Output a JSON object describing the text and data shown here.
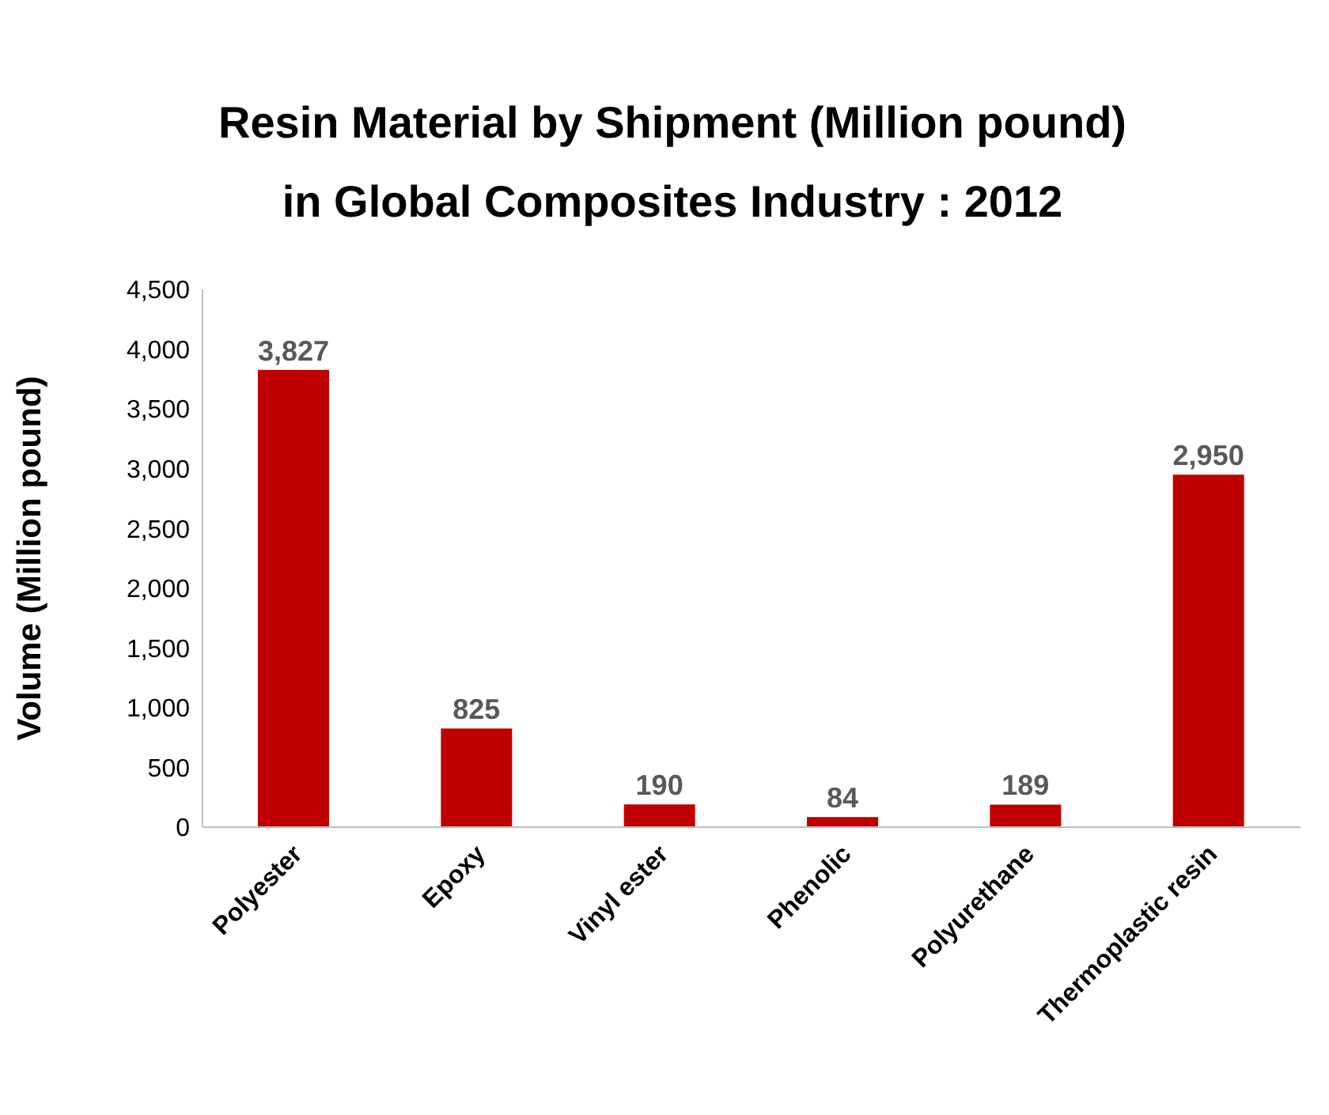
{
  "chart_data": {
    "type": "bar",
    "title": "Resin Material by Shipment (Million pound)\nin Global Composites Industry : 2012",
    "ylabel": "Volume (Million pound)",
    "categories": [
      "Polyester",
      "Epoxy",
      "Vinyl ester",
      "Phenolic",
      "Polyurethane",
      "Thermoplastic resin"
    ],
    "values": [
      3827,
      825,
      190,
      84,
      189,
      2950
    ],
    "color": "#c00000",
    "ylim": [
      0,
      4500
    ],
    "yticks": [
      0,
      500,
      {
        "value": 1000,
        "label": "1,000"
      },
      {
        "value": 1500,
        "label": "1,500"
      },
      {
        "value": 2000,
        "label": "2,000"
      },
      {
        "value": 2500,
        "label": "2,500"
      },
      {
        "value": 3000,
        "label": "3,000"
      },
      {
        "value": 3500,
        "label": "3,500"
      },
      {
        "value": 4000,
        "label": "4,000"
      },
      {
        "value": 4500,
        "label": "4,500"
      }
    ],
    "value_labels": [
      "3,827",
      "825",
      "190",
      "84",
      "189",
      "2,950"
    ]
  }
}
